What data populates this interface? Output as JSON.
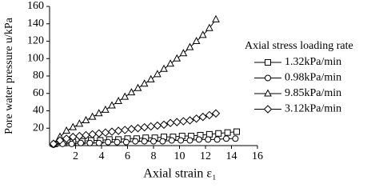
{
  "chart_data": {
    "type": "line",
    "xlabel": "Axial strain ε₁",
    "ylabel": "Pore water pressure u/kPa",
    "legend_title": "Axial stress loading rate",
    "xlim": [
      0,
      16
    ],
    "xticks": [
      2,
      4,
      6,
      8,
      10,
      12,
      14,
      16
    ],
    "ylim": [
      0,
      160
    ],
    "yticks": [
      20,
      40,
      60,
      80,
      100,
      120,
      140,
      160
    ],
    "color": "#000000",
    "series": [
      {
        "name": "1.32kPa/min",
        "marker": "square",
        "x": [
          0.4,
          1.1,
          1.8,
          2.5,
          3.2,
          3.9,
          4.6,
          5.3,
          6.0,
          6.7,
          7.4,
          8.1,
          8.8,
          9.5,
          10.2,
          10.9,
          11.6,
          12.3,
          13.0,
          13.7,
          14.4
        ],
        "values": [
          2,
          3,
          4,
          5,
          6,
          6,
          7,
          7,
          8,
          8,
          9,
          9,
          10,
          10,
          11,
          11,
          12,
          13,
          14,
          15,
          16
        ]
      },
      {
        "name": "0.98kPa/min",
        "marker": "circle",
        "x": [
          0.3,
          1.0,
          1.7,
          2.4,
          3.1,
          3.8,
          4.5,
          5.2,
          5.9,
          6.6,
          7.3,
          8.0,
          8.7,
          9.4,
          10.1,
          10.8,
          11.5,
          12.2,
          12.9,
          13.6,
          14.3
        ],
        "values": [
          1,
          2,
          2,
          3,
          3,
          3,
          4,
          4,
          4,
          5,
          5,
          5,
          5,
          6,
          6,
          6,
          7,
          7,
          7,
          8,
          8
        ]
      },
      {
        "name": "9.85kPa/min",
        "marker": "triangle",
        "x": [
          0.3,
          0.8,
          1.3,
          1.8,
          2.3,
          2.8,
          3.3,
          3.8,
          4.3,
          4.8,
          5.3,
          5.8,
          6.3,
          6.8,
          7.3,
          7.8,
          8.3,
          8.8,
          9.3,
          9.8,
          10.3,
          10.8,
          11.3,
          11.8,
          12.3,
          12.8
        ],
        "values": [
          2,
          10,
          17,
          21,
          25,
          29,
          33,
          37,
          41,
          46,
          51,
          56,
          61,
          66,
          71,
          76,
          82,
          88,
          94,
          100,
          106,
          113,
          120,
          127,
          135,
          145
        ]
      },
      {
        "name": "3.12kPa/min",
        "marker": "diamond",
        "x": [
          0.3,
          0.8,
          1.3,
          1.8,
          2.3,
          2.8,
          3.3,
          3.8,
          4.3,
          4.8,
          5.3,
          5.8,
          6.3,
          6.8,
          7.3,
          7.8,
          8.3,
          8.8,
          9.3,
          9.8,
          10.3,
          10.8,
          11.3,
          11.8,
          12.3,
          12.8
        ],
        "values": [
          2,
          6,
          8,
          10,
          11,
          12,
          13,
          14,
          15,
          16,
          17,
          18,
          19,
          20,
          21,
          22,
          23,
          24,
          26,
          27,
          28,
          29,
          31,
          33,
          35,
          37
        ]
      }
    ]
  }
}
